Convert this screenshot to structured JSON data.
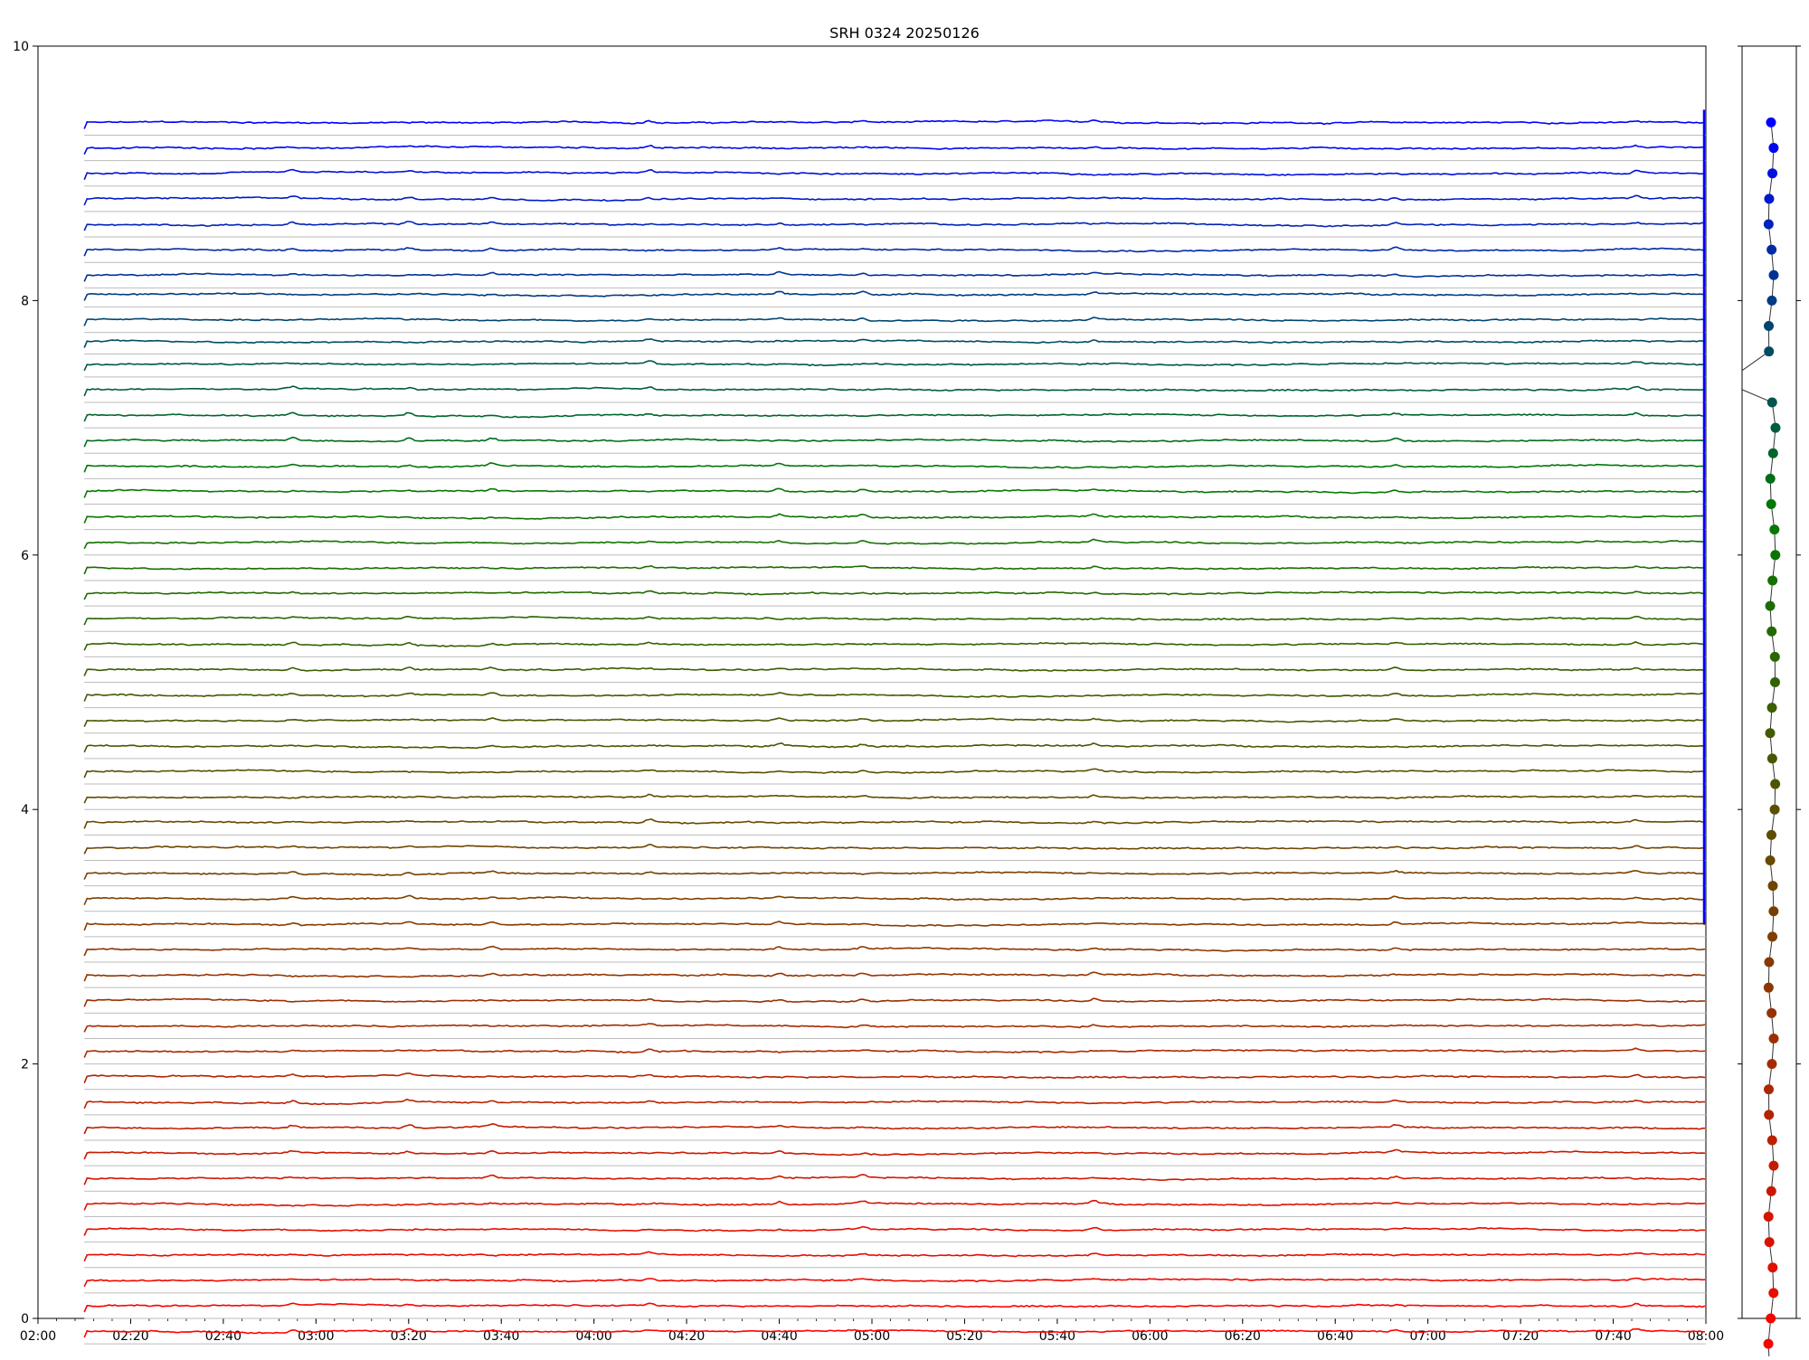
{
  "chart_data": [
    {
      "type": "line",
      "title": "SRH 0324 20250126",
      "xlabel": "",
      "ylabel": "",
      "xlim": [
        "02:00",
        "08:00"
      ],
      "ylim": [
        0,
        10
      ],
      "x_ticks": [
        "02:00",
        "02:20",
        "02:40",
        "03:00",
        "03:20",
        "03:40",
        "04:00",
        "04:20",
        "04:40",
        "05:00",
        "05:20",
        "05:40",
        "06:00",
        "06:20",
        "06:40",
        "07:00",
        "07:20",
        "07:40",
        "08:00"
      ],
      "y_ticks": [
        "0",
        "2",
        "4",
        "6",
        "8",
        "10"
      ],
      "grid": "horizontal baseline per series",
      "legend": "none",
      "x_start": "02:10",
      "x_end": "08:00",
      "series_count": 49,
      "series_spacing": 0.2,
      "series_baselines_top": [
        9.4,
        9.2,
        9.0,
        8.8,
        8.6,
        8.4,
        8.2,
        8.05,
        7.85,
        7.68,
        7.5
      ],
      "series_baselines_bottom_first": 7.3,
      "colors": {
        "top": "#0000ff",
        "mid": "#007a00",
        "bottom": "#ff0000",
        "grid": "#bbbbbb"
      },
      "vertical_marker": {
        "x": "08:00",
        "y_range": [
          3.1,
          9.5
        ],
        "color": "#0000ff"
      },
      "events": [
        "02:55",
        "03:20",
        "03:38",
        "04:12",
        "04:40",
        "04:58",
        "05:48",
        "06:53",
        "07:45"
      ]
    },
    {
      "type": "scatter",
      "title": "",
      "series_count": 49,
      "ylim": [
        0,
        10
      ],
      "points_y_top": [
        9.4,
        9.2,
        9.0,
        8.8,
        8.6,
        8.4,
        8.2,
        8.0,
        7.8,
        7.6
      ],
      "points_y_bottom_start": 7.2,
      "points_y_spacing": 0.2,
      "gap_connector": {
        "from_y": 7.6,
        "to_y": 7.2
      },
      "x_ticks": [
        ""
      ],
      "y_ticks": [
        ""
      ]
    }
  ]
}
